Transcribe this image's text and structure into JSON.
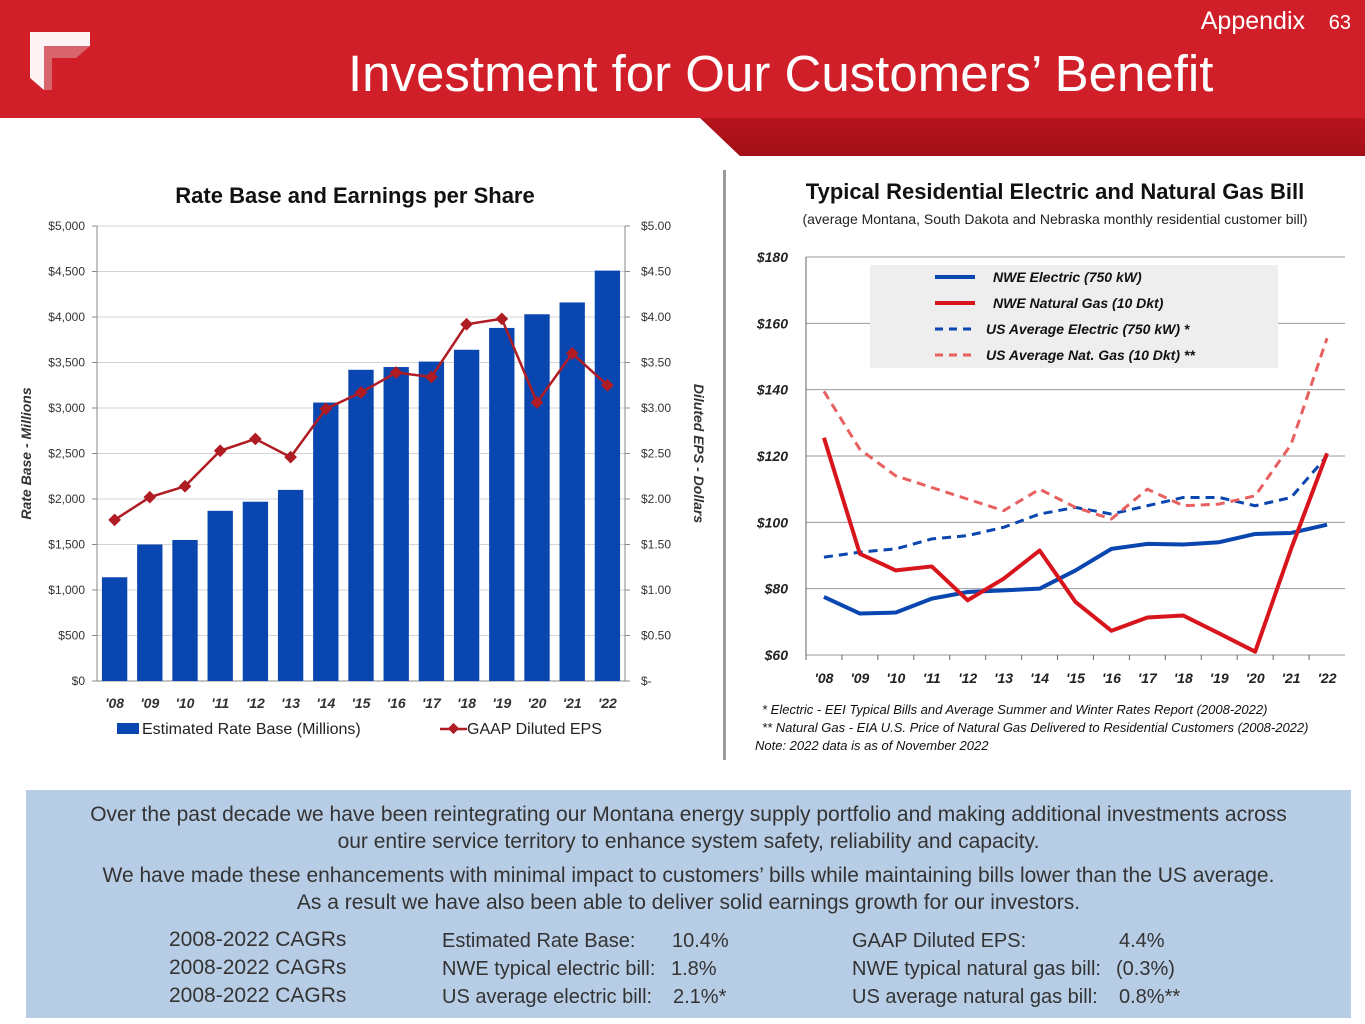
{
  "header": {
    "appendix": "Appendix",
    "page_number": "63",
    "title": "Investment for Our Customers’ Benefit"
  },
  "colors": {
    "brand_red": "#d11f2a",
    "bar_blue": "#0a46b0",
    "eps_red": "#b01c23",
    "panel_blue": "#b7cce5"
  },
  "chart_data": [
    {
      "type": "bar",
      "title": "Rate Base and Earnings per Share",
      "ylabel": "Rate Base - Millions",
      "y2label": "Diluted EPS - Dollars",
      "ylim": [
        0,
        5000
      ],
      "y2lim": [
        0,
        5
      ],
      "y_ticks": [
        "$0",
        "$500",
        "$1,000",
        "$1,500",
        "$2,000",
        "$2,500",
        "$3,000",
        "$3,500",
        "$4,000",
        "$4,500",
        "$5,000"
      ],
      "y2_ticks": [
        "$-",
        "$0.50",
        "$1.00",
        "$1.50",
        "$2.00",
        "$2.50",
        "$3.00",
        "$3.50",
        "$4.00",
        "$4.50",
        "$5.00"
      ],
      "categories": [
        "'08",
        "'09",
        "'10",
        "'11",
        "'12",
        "'13",
        "'14",
        "'15",
        "'16",
        "'17",
        "'18",
        "'19",
        "'20",
        "'21",
        "'22"
      ],
      "series": [
        {
          "name": "Estimated Rate Base (Millions)",
          "type": "bar",
          "axis": "left",
          "values": [
            1140,
            1500,
            1550,
            1870,
            1970,
            2100,
            3060,
            3420,
            3450,
            3510,
            3640,
            3880,
            4030,
            4160,
            4510
          ]
        },
        {
          "name": "GAAP Diluted EPS",
          "type": "line",
          "axis": "right",
          "values": [
            1.77,
            2.02,
            2.14,
            2.53,
            2.66,
            2.46,
            2.99,
            3.17,
            3.39,
            3.34,
            3.92,
            3.98,
            3.06,
            3.6,
            3.25
          ]
        }
      ],
      "legend": "bottom"
    },
    {
      "type": "line",
      "title": "Typical Residential Electric and Natural Gas Bill",
      "subtitle": "(average Montana, South Dakota and Nebraska monthly residential customer bill)",
      "ylim": [
        60,
        180
      ],
      "y_ticks": [
        "$60",
        "$80",
        "$100",
        "$120",
        "$140",
        "$160",
        "$180"
      ],
      "categories": [
        "'08",
        "'09",
        "'10",
        "'11",
        "'12",
        "'13",
        "'14",
        "'15",
        "'16",
        "'17",
        "'18",
        "'19",
        "'20",
        "'21",
        "'22"
      ],
      "series": [
        {
          "name": "NWE Electric (750 kW)",
          "color": "#0a46b0",
          "dashed": false,
          "values": [
            77.5,
            72.5,
            72.8,
            77,
            79,
            79.5,
            80,
            85.5,
            92,
            93.5,
            93.3,
            94,
            96.5,
            96.8,
            99.3
          ]
        },
        {
          "name": "NWE Natural Gas (10 Dkt)",
          "color": "#d8151c",
          "dashed": false,
          "values": [
            125.5,
            90.5,
            85.5,
            86.7,
            76.5,
            83,
            91.5,
            76,
            67.3,
            71.3,
            71.9,
            66.5,
            61,
            92,
            120.8
          ]
        },
        {
          "name": "US Average Electric (750 kW) *",
          "color": "#0a46b0",
          "dashed": true,
          "values": [
            89.5,
            91,
            92,
            95,
            96,
            98.5,
            102.5,
            104.5,
            102.5,
            105,
            107.5,
            107.5,
            105,
            107.5,
            120
          ]
        },
        {
          "name": "US Average Nat. Gas (10 Dkt) **",
          "color": "#e8605f",
          "dashed": true,
          "values": [
            139.5,
            122,
            114,
            110.5,
            107,
            103.5,
            110,
            104.5,
            101,
            110,
            105,
            105.5,
            108,
            123.5,
            155.5
          ]
        }
      ],
      "legend": "top",
      "footnotes": [
        "* Electric - EEI Typical Bills and Average Summer and Winter Rates Report (2008-2022)",
        "** Natural Gas - EIA U.S. Price of Natural Gas Delivered to Residential Customers (2008-2022)",
        "Note: 2022 data is as of November 2022"
      ]
    }
  ],
  "summary": {
    "para1_line1": "Over the past decade we have been reintegrating our Montana energy supply portfolio and making additional investments across",
    "para1_line2": "our entire service territory to enhance system safety, reliability and capacity.",
    "para2_line1": "We have made these enhancements with minimal impact to customers’ bills while maintaining bills lower than the US average.",
    "para2_line2": "As a result we have also been able to deliver solid earnings growth for our investors.",
    "cagrs": [
      {
        "label": "2008-2022 CAGRs",
        "left_name": "Estimated Rate Base:",
        "left_value": "10.4%",
        "right_name": "GAAP Diluted EPS:",
        "right_value": "4.4%"
      },
      {
        "label": "2008-2022 CAGRs",
        "left_name": "NWE typical electric bill:",
        "left_value": "1.8%",
        "right_name": "NWE typical natural gas bill:",
        "right_value": "(0.3%)"
      },
      {
        "label": "2008-2022 CAGRs",
        "left_name": "US average electric bill:",
        "left_value": "2.1%*",
        "right_name": "US average natural gas bill:",
        "right_value": "0.8%**"
      }
    ]
  }
}
